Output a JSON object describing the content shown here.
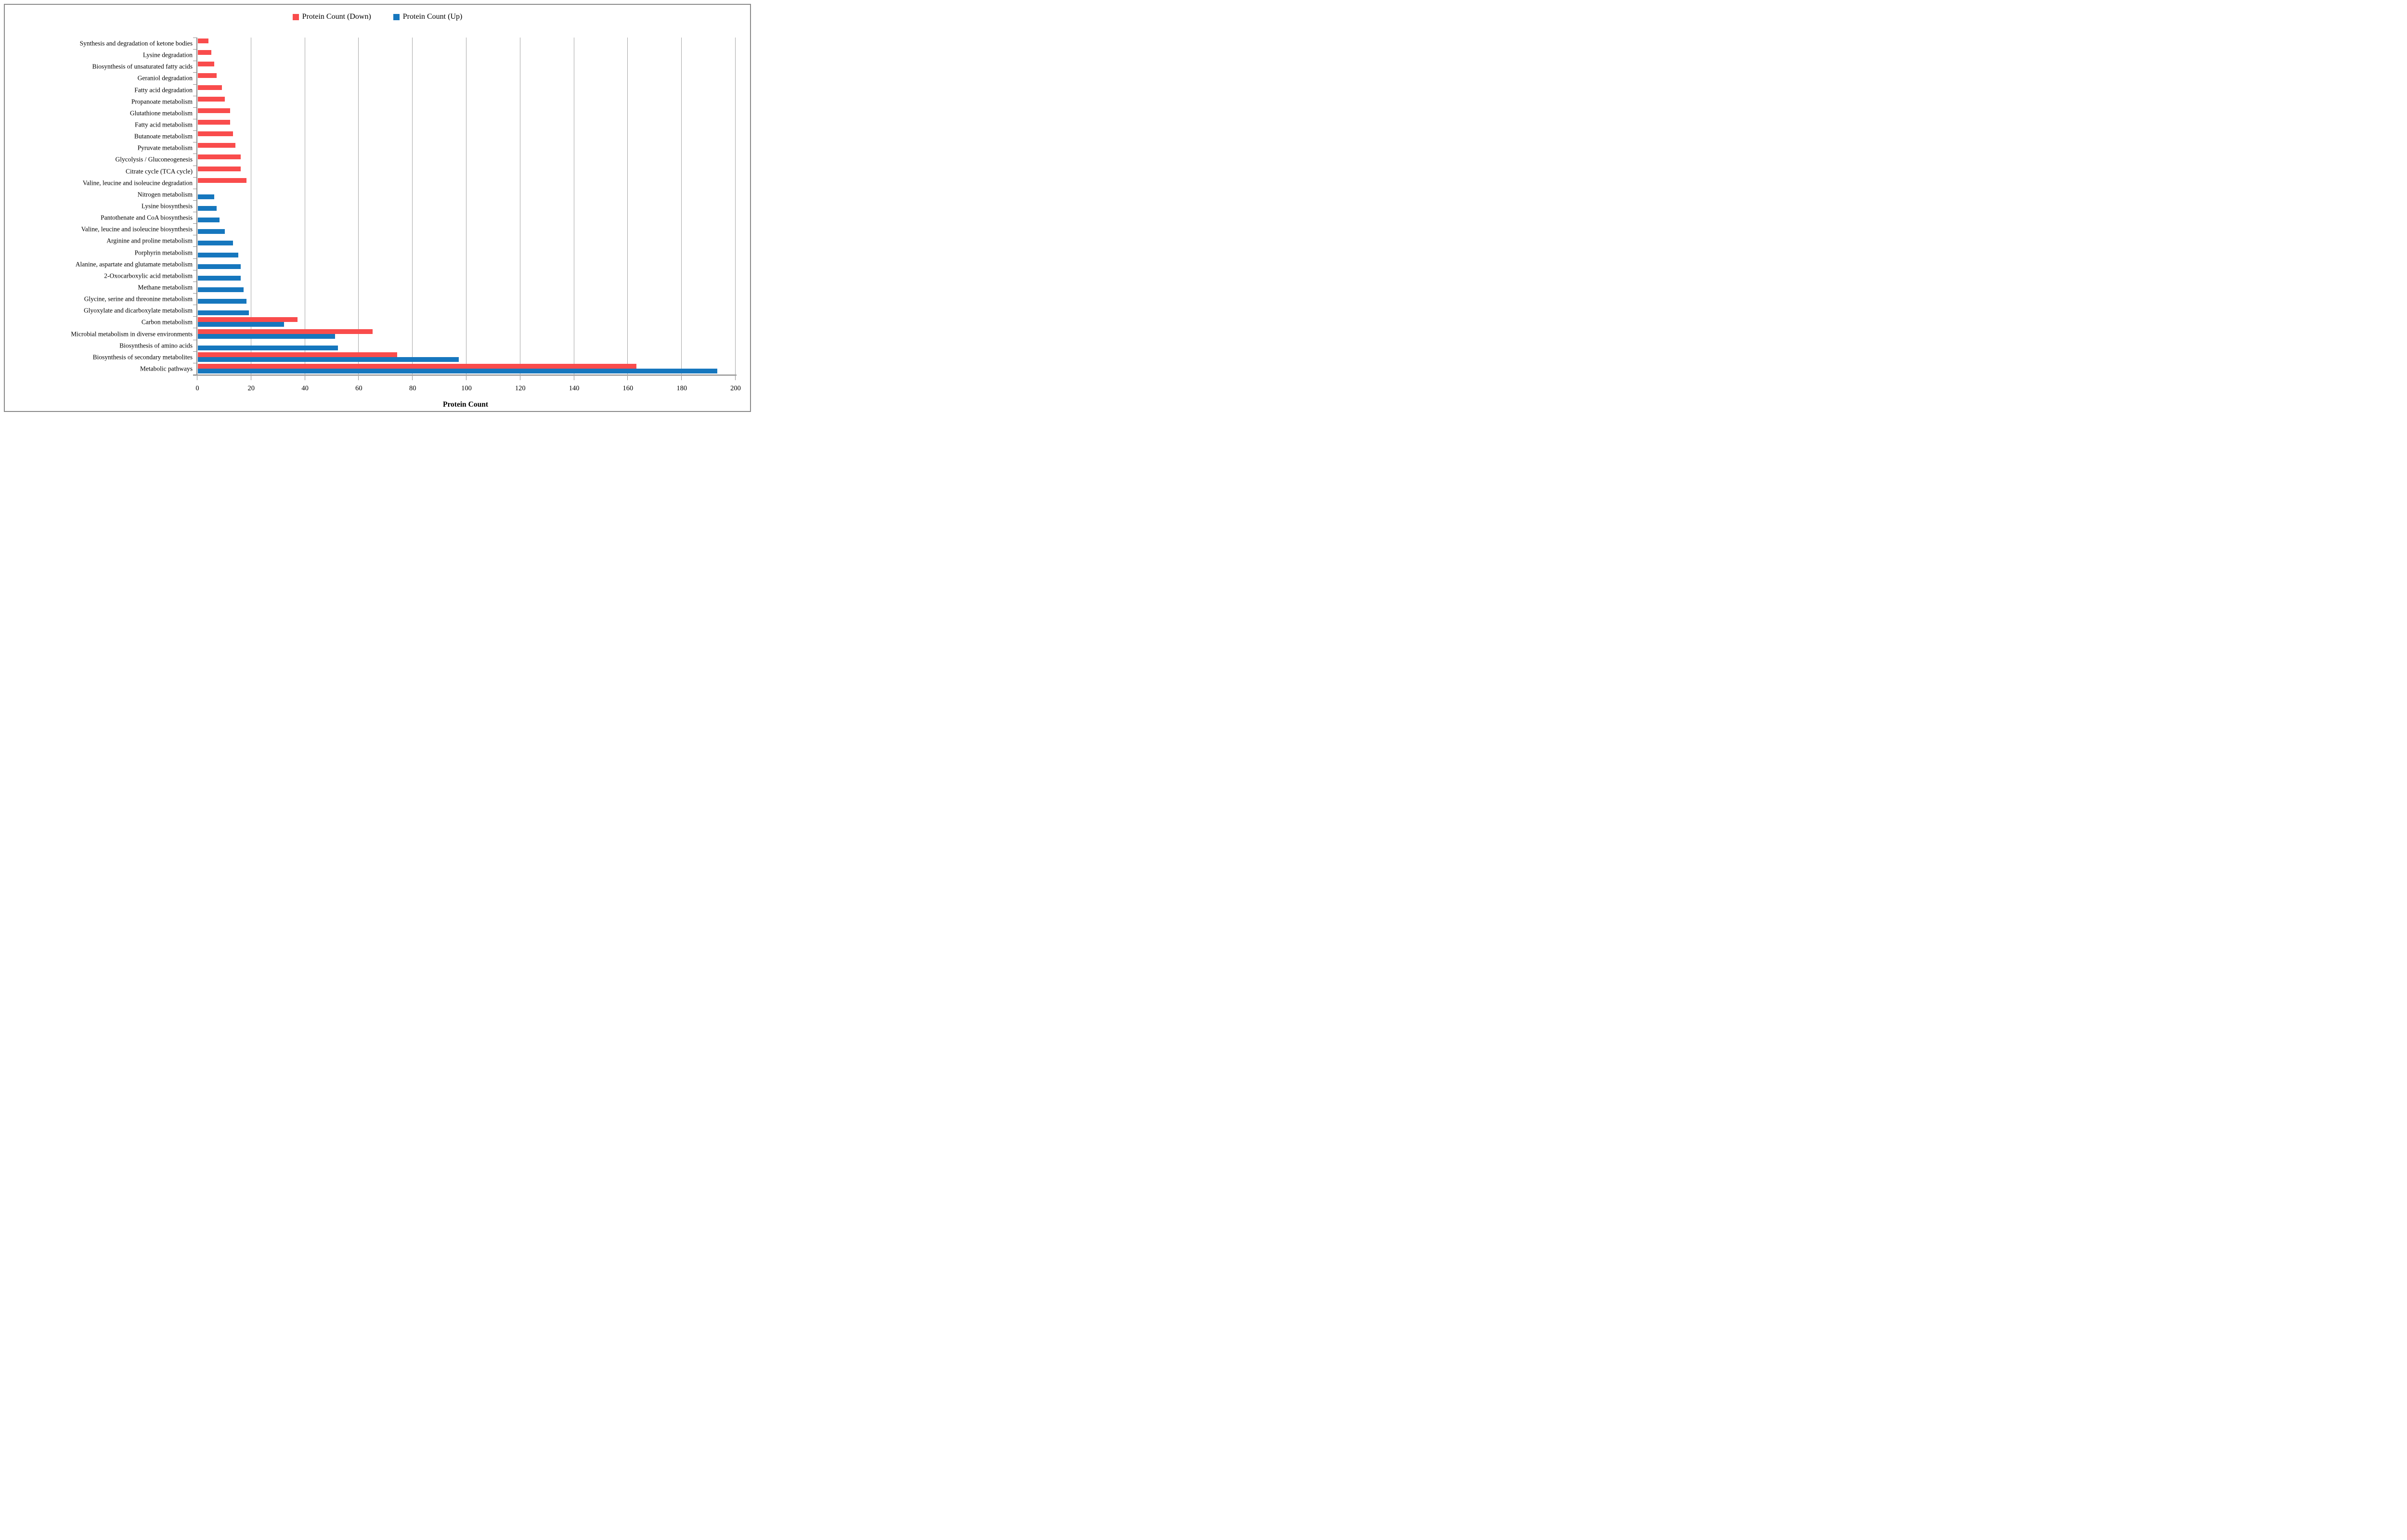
{
  "legend": {
    "items": [
      {
        "label": "Protein Count (Down)",
        "color": "#f94c4c"
      },
      {
        "label": "Protein Count (Up)",
        "color": "#1677be"
      }
    ]
  },
  "chart_data": {
    "type": "bar",
    "orientation": "horizontal",
    "title": "",
    "xlabel": "Protein Count",
    "ylabel": "",
    "xlim": [
      0,
      200
    ],
    "x_ticks": [
      0,
      20,
      40,
      60,
      80,
      100,
      120,
      140,
      160,
      180,
      200
    ],
    "grid": "vertical-on",
    "legend_position": "top-center",
    "categories": [
      "Synthesis and degradation of ketone bodies",
      "Lysine degradation",
      "Biosynthesis of unsaturated fatty acids",
      "Geraniol degradation",
      "Fatty acid degradation",
      "Propanoate metabolism",
      "Glutathione metabolism",
      "Fatty acid metabolism",
      "Butanoate metabolism",
      "Pyruvate metabolism",
      "Glycolysis / Gluconeogenesis",
      "Citrate cycle (TCA cycle)",
      "Valine, leucine and isoleucine degradation",
      "Nitrogen metabolism",
      "Lysine biosynthesis",
      "Pantothenate and CoA biosynthesis",
      "Valine, leucine and isoleucine biosynthesis",
      "Arginine and proline metabolism",
      "Porphyrin metabolism",
      "Alanine, aspartate and glutamate metabolism",
      "2-Oxocarboxylic acid metabolism",
      "Methane metabolism",
      "Glycine, serine and threonine metabolism",
      "Glyoxylate and dicarboxylate metabolism",
      "Carbon metabolism",
      "Microbial metabolism in diverse environments",
      "Biosynthesis of amino acids",
      "Biosynthesis of secondary metabolites",
      "Metabolic pathways"
    ],
    "series": [
      {
        "name": "Protein Count (Down)",
        "color": "#f94c4c",
        "values": [
          4,
          5,
          6,
          7,
          9,
          10,
          12,
          12,
          13,
          14,
          16,
          16,
          18,
          null,
          null,
          null,
          null,
          null,
          null,
          null,
          null,
          null,
          null,
          null,
          37,
          65,
          null,
          74,
          163
        ]
      },
      {
        "name": "Protein Count (Up)",
        "color": "#1677be",
        "values": [
          null,
          null,
          null,
          null,
          null,
          null,
          null,
          null,
          null,
          null,
          null,
          null,
          null,
          6,
          7,
          8,
          10,
          13,
          15,
          16,
          16,
          17,
          18,
          19,
          32,
          51,
          52,
          97,
          193
        ]
      }
    ],
    "style": {
      "gridline_color": "#a6a6a6",
      "axis_color": "#8c8c8c",
      "frame_color": "#8a8a8a",
      "text_color": "#000000"
    }
  }
}
